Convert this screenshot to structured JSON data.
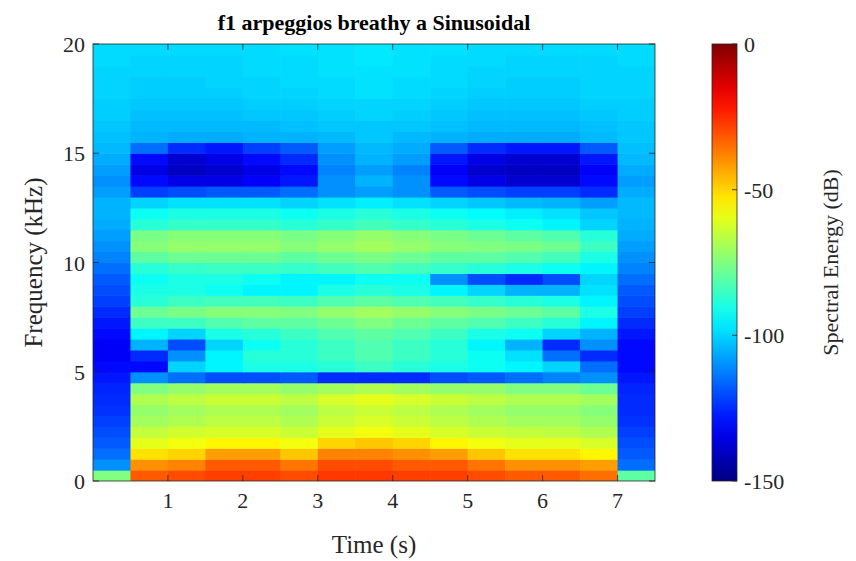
{
  "chart_data": {
    "type": "heatmap",
    "title": "f1 arpeggios breathy a Sinusoidal",
    "x_label": "Time (s)",
    "y_label": "Frequency (kHz)",
    "colorbar_label": "Spectral Energy (dB)",
    "xlim": [
      0,
      7.5
    ],
    "ylim": [
      0,
      20
    ],
    "xticks": [
      1,
      2,
      3,
      4,
      5,
      6,
      7
    ],
    "yticks": [
      0,
      5,
      10,
      15,
      20
    ],
    "clim": [
      -150,
      0
    ],
    "cticks": [
      -150,
      -100,
      -50,
      0
    ],
    "x": [
      0.25,
      0.75,
      1.25,
      1.75,
      2.25,
      2.75,
      3.25,
      3.75,
      4.25,
      4.75,
      5.25,
      5.75,
      6.25,
      6.75,
      7.25
    ],
    "y": [
      0.25,
      0.75,
      1.25,
      1.75,
      2.25,
      2.75,
      3.25,
      3.75,
      4.25,
      4.75,
      5.25,
      5.75,
      6.25,
      6.75,
      7.25,
      7.75,
      8.25,
      8.75,
      9.25,
      9.75,
      10.25,
      10.75,
      11.25,
      11.75,
      12.25,
      12.75,
      13.25,
      13.75,
      14.25,
      14.75,
      15.25,
      15.75,
      16.25,
      16.75,
      17.25,
      17.75,
      18.25,
      18.75,
      19.25,
      19.75
    ],
    "values": [
      [
        -75,
        -32,
        -30,
        -28,
        -28,
        -30,
        -27,
        -27,
        -28,
        -28,
        -30,
        -32,
        -32,
        -35,
        -80
      ],
      [
        -110,
        -40,
        -38,
        -32,
        -32,
        -36,
        -30,
        -30,
        -32,
        -32,
        -36,
        -40,
        -40,
        -42,
        -115
      ],
      [
        -115,
        -52,
        -50,
        -42,
        -42,
        -48,
        -38,
        -38,
        -40,
        -42,
        -48,
        -52,
        -52,
        -55,
        -118
      ],
      [
        -118,
        -60,
        -58,
        -55,
        -55,
        -58,
        -50,
        -48,
        -50,
        -55,
        -58,
        -60,
        -60,
        -62,
        -120
      ],
      [
        -120,
        -65,
        -63,
        -62,
        -62,
        -64,
        -60,
        -58,
        -60,
        -62,
        -64,
        -65,
        -66,
        -68,
        -122
      ],
      [
        -122,
        -70,
        -68,
        -66,
        -66,
        -68,
        -64,
        -62,
        -64,
        -66,
        -68,
        -70,
        -70,
        -72,
        -124
      ],
      [
        -124,
        -72,
        -70,
        -68,
        -68,
        -70,
        -66,
        -64,
        -66,
        -68,
        -70,
        -72,
        -72,
        -74,
        -125
      ],
      [
        -125,
        -68,
        -66,
        -64,
        -64,
        -66,
        -62,
        -60,
        -62,
        -64,
        -66,
        -68,
        -68,
        -70,
        -125
      ],
      [
        -126,
        -75,
        -72,
        -70,
        -70,
        -72,
        -70,
        -68,
        -70,
        -72,
        -72,
        -75,
        -75,
        -78,
        -126
      ],
      [
        -128,
        -110,
        -115,
        -120,
        -120,
        -118,
        -125,
        -125,
        -125,
        -120,
        -118,
        -115,
        -112,
        -110,
        -128
      ],
      [
        -130,
        -130,
        -100,
        -95,
        -90,
        -90,
        -88,
        -85,
        -88,
        -90,
        -92,
        -95,
        -100,
        -115,
        -130
      ],
      [
        -132,
        -125,
        -110,
        -95,
        -88,
        -88,
        -85,
        -82,
        -85,
        -88,
        -92,
        -98,
        -115,
        -125,
        -130
      ],
      [
        -132,
        -105,
        -120,
        -100,
        -92,
        -88,
        -85,
        -82,
        -85,
        -88,
        -95,
        -105,
        -125,
        -110,
        -130
      ],
      [
        -130,
        -95,
        -100,
        -90,
        -88,
        -85,
        -82,
        -80,
        -82,
        -85,
        -90,
        -92,
        -100,
        -105,
        -128
      ],
      [
        -128,
        -85,
        -85,
        -82,
        -80,
        -80,
        -78,
        -75,
        -78,
        -80,
        -82,
        -85,
        -88,
        -95,
        -125
      ],
      [
        -125,
        -78,
        -76,
        -74,
        -74,
        -75,
        -72,
        -70,
        -72,
        -74,
        -76,
        -78,
        -80,
        -90,
        -122
      ],
      [
        -122,
        -88,
        -85,
        -84,
        -84,
        -85,
        -82,
        -80,
        -82,
        -84,
        -86,
        -88,
        -90,
        -95,
        -120
      ],
      [
        -120,
        -90,
        -90,
        -92,
        -95,
        -95,
        -90,
        -88,
        -90,
        -95,
        -100,
        -105,
        -105,
        -98,
        -118
      ],
      [
        -118,
        -92,
        -90,
        -90,
        -92,
        -95,
        -95,
        -92,
        -92,
        -110,
        -120,
        -125,
        -120,
        -100,
        -115
      ],
      [
        -115,
        -88,
        -86,
        -85,
        -85,
        -86,
        -84,
        -82,
        -84,
        -86,
        -88,
        -90,
        -92,
        -95,
        -112
      ],
      [
        -112,
        -80,
        -78,
        -78,
        -78,
        -80,
        -78,
        -76,
        -78,
        -80,
        -80,
        -82,
        -84,
        -90,
        -110
      ],
      [
        -110,
        -74,
        -72,
        -72,
        -72,
        -74,
        -72,
        -70,
        -72,
        -74,
        -75,
        -76,
        -78,
        -85,
        -108
      ],
      [
        -108,
        -76,
        -74,
        -74,
        -74,
        -76,
        -74,
        -72,
        -74,
        -76,
        -78,
        -80,
        -82,
        -88,
        -106
      ],
      [
        -106,
        -88,
        -86,
        -86,
        -86,
        -88,
        -86,
        -84,
        -86,
        -88,
        -90,
        -92,
        -95,
        -100,
        -105
      ],
      [
        -105,
        -92,
        -90,
        -90,
        -90,
        -92,
        -90,
        -88,
        -90,
        -92,
        -94,
        -96,
        -98,
        -102,
        -104
      ],
      [
        -105,
        -100,
        -98,
        -98,
        -98,
        -100,
        -98,
        -96,
        -98,
        -100,
        -102,
        -104,
        -105,
        -108,
        -104
      ],
      [
        -108,
        -122,
        -120,
        -118,
        -118,
        -115,
        -110,
        -108,
        -110,
        -118,
        -120,
        -122,
        -122,
        -125,
        -106
      ],
      [
        -110,
        -130,
        -135,
        -135,
        -132,
        -128,
        -110,
        -105,
        -110,
        -130,
        -135,
        -138,
        -138,
        -130,
        -108
      ],
      [
        -108,
        -135,
        -140,
        -138,
        -135,
        -130,
        -112,
        -108,
        -112,
        -132,
        -138,
        -140,
        -140,
        -132,
        -106
      ],
      [
        -106,
        -130,
        -138,
        -135,
        -130,
        -125,
        -110,
        -105,
        -108,
        -128,
        -135,
        -138,
        -138,
        -128,
        -104
      ],
      [
        -104,
        -115,
        -125,
        -128,
        -122,
        -118,
        -108,
        -104,
        -106,
        -118,
        -125,
        -128,
        -128,
        -118,
        -103
      ],
      [
        -103,
        -105,
        -106,
        -106,
        -105,
        -105,
        -104,
        -102,
        -104,
        -105,
        -106,
        -106,
        -106,
        -104,
        -102
      ],
      [
        -102,
        -104,
        -104,
        -104,
        -104,
        -103,
        -102,
        -102,
        -102,
        -103,
        -104,
        -104,
        -104,
        -103,
        -102
      ],
      [
        -101,
        -103,
        -103,
        -103,
        -102,
        -102,
        -101,
        -100,
        -101,
        -102,
        -103,
        -103,
        -103,
        -102,
        -101
      ],
      [
        -101,
        -102,
        -102,
        -102,
        -101,
        -101,
        -100,
        -100,
        -100,
        -101,
        -102,
        -102,
        -102,
        -101,
        -101
      ],
      [
        -100,
        -101,
        -101,
        -101,
        -100,
        -100,
        -99,
        -98,
        -99,
        -100,
        -101,
        -101,
        -101,
        -100,
        -100
      ],
      [
        -100,
        -101,
        -101,
        -100,
        -100,
        -99,
        -99,
        -98,
        -99,
        -99,
        -100,
        -101,
        -101,
        -100,
        -100
      ],
      [
        -100,
        -100,
        -100,
        -100,
        -99,
        -99,
        -98,
        -98,
        -98,
        -99,
        -100,
        -100,
        -100,
        -100,
        -100
      ],
      [
        -99,
        -100,
        -100,
        -100,
        -99,
        -99,
        -98,
        -97,
        -98,
        -99,
        -99,
        -100,
        -100,
        -100,
        -99
      ],
      [
        -99,
        -99,
        -99,
        -99,
        -99,
        -98,
        -98,
        -97,
        -98,
        -98,
        -99,
        -99,
        -99,
        -99,
        -99
      ]
    ]
  }
}
